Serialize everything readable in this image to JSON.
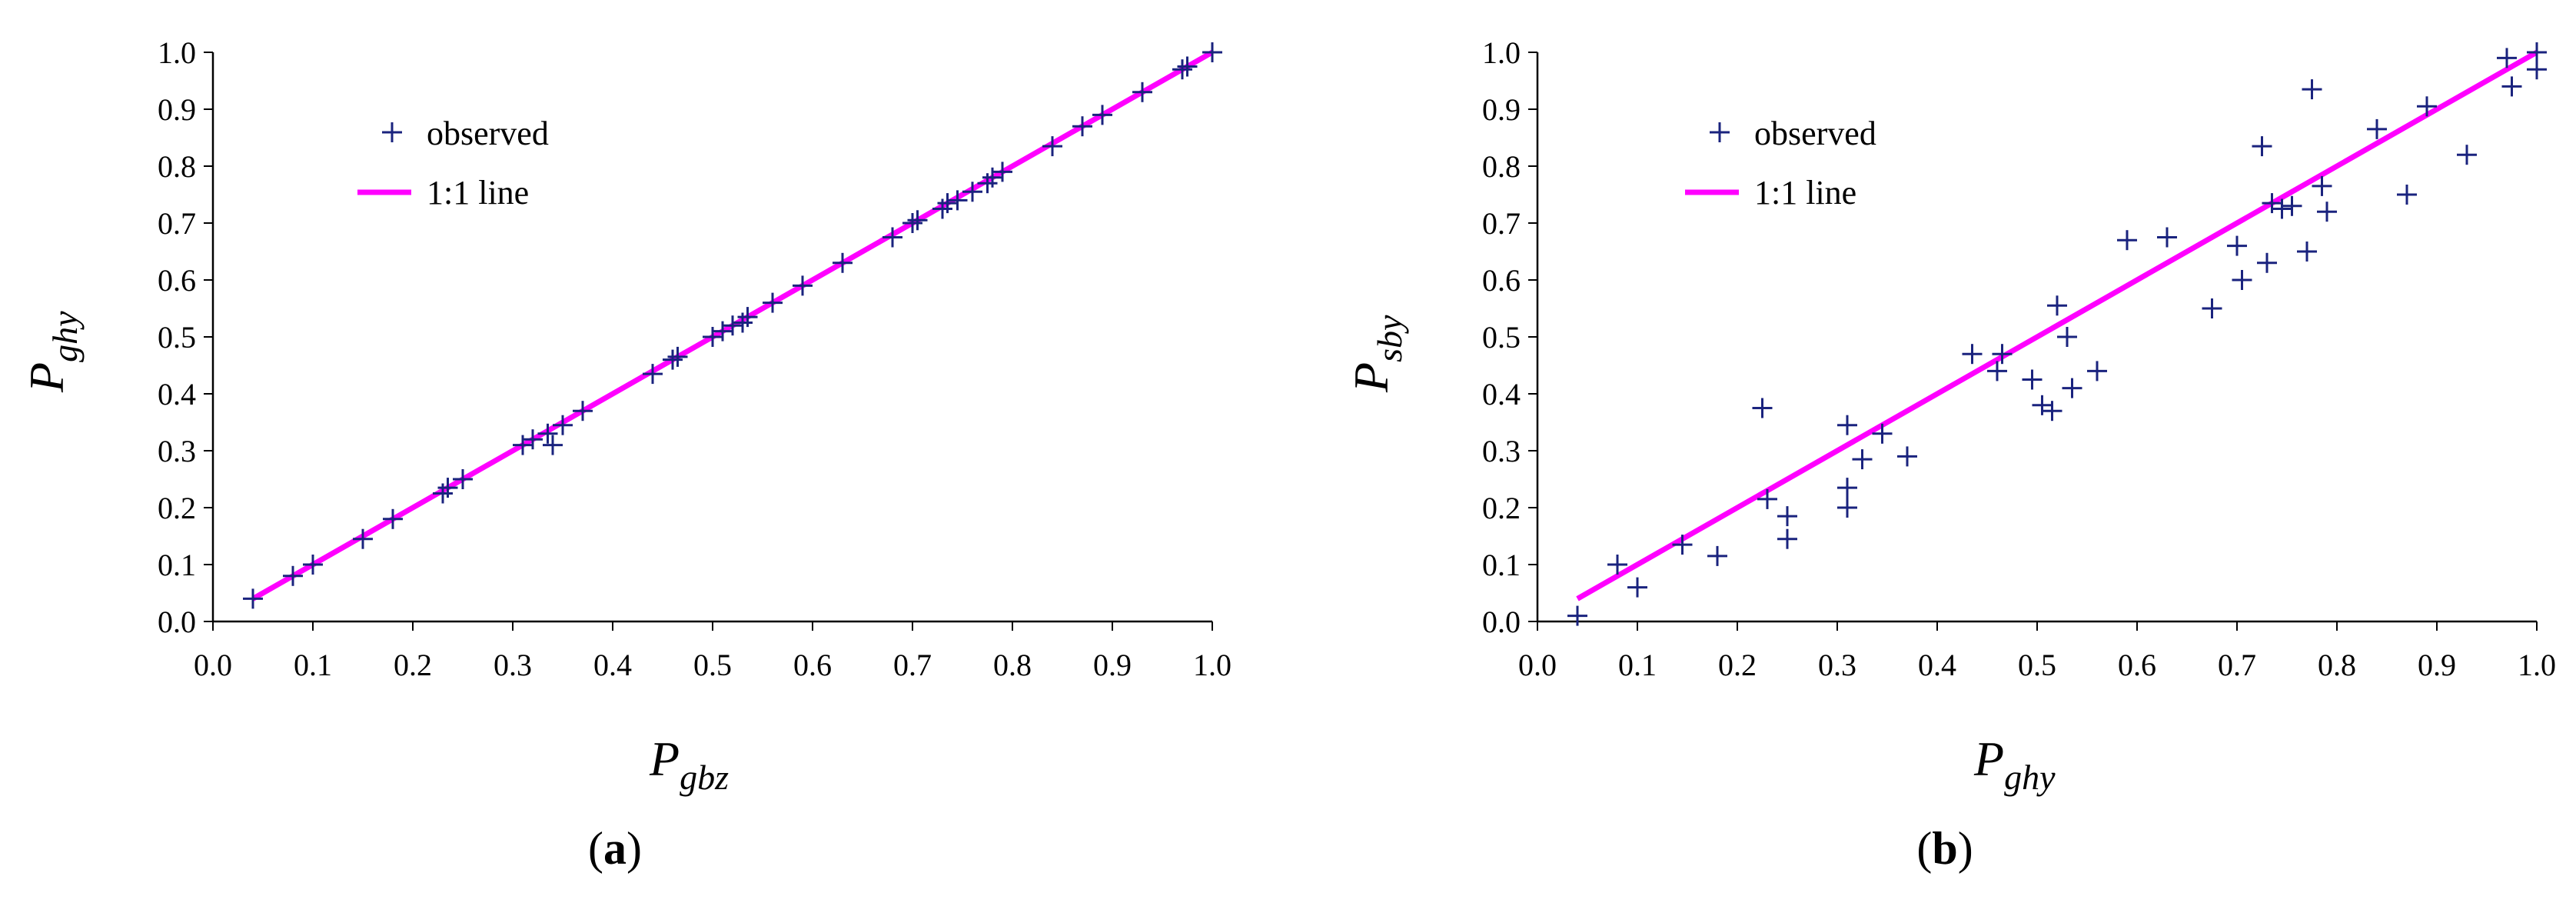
{
  "colors": {
    "observed": "#1a237e",
    "line": "#ff00ff",
    "axis": "#000000"
  },
  "panels": [
    {
      "label": "(a)",
      "label_bold": "a",
      "xlabel_main": "P",
      "xlabel_sub": "gbz",
      "ylabel_main": "P",
      "ylabel_sub": "ghy",
      "legend": {
        "observed": "observed",
        "line": "1:1 line"
      }
    },
    {
      "label": "(b)",
      "label_bold": "b",
      "xlabel_main": "P",
      "xlabel_sub": "ghy",
      "ylabel_main": "P",
      "ylabel_sub": "sby",
      "legend": {
        "observed": "observed",
        "line": "1:1 line"
      }
    }
  ],
  "chart_data": [
    {
      "type": "scatter",
      "xlabel": "Pgbz",
      "ylabel": "Pghy",
      "xlim": [
        0,
        1
      ],
      "ylim": [
        0,
        1
      ],
      "xticks": [
        "0.0",
        "0.1",
        "0.2",
        "0.3",
        "0.4",
        "0.5",
        "0.6",
        "0.7",
        "0.8",
        "0.9",
        "1.0"
      ],
      "yticks": [
        "0.0",
        "0.1",
        "0.2",
        "0.3",
        "0.4",
        "0.5",
        "0.6",
        "0.7",
        "0.8",
        "0.9",
        "1.0"
      ],
      "legend_position": "top-left",
      "series": [
        {
          "name": "observed",
          "marker": "+",
          "points": [
            [
              0.04,
              0.04
            ],
            [
              0.08,
              0.08
            ],
            [
              0.1,
              0.1
            ],
            [
              0.15,
              0.145
            ],
            [
              0.18,
              0.18
            ],
            [
              0.23,
              0.225
            ],
            [
              0.235,
              0.235
            ],
            [
              0.25,
              0.25
            ],
            [
              0.31,
              0.31
            ],
            [
              0.32,
              0.32
            ],
            [
              0.335,
              0.33
            ],
            [
              0.34,
              0.31
            ],
            [
              0.35,
              0.345
            ],
            [
              0.37,
              0.37
            ],
            [
              0.44,
              0.435
            ],
            [
              0.46,
              0.46
            ],
            [
              0.465,
              0.465
            ],
            [
              0.5,
              0.5
            ],
            [
              0.51,
              0.51
            ],
            [
              0.52,
              0.52
            ],
            [
              0.53,
              0.525
            ],
            [
              0.535,
              0.535
            ],
            [
              0.56,
              0.56
            ],
            [
              0.59,
              0.59
            ],
            [
              0.63,
              0.63
            ],
            [
              0.68,
              0.675
            ],
            [
              0.7,
              0.7
            ],
            [
              0.705,
              0.705
            ],
            [
              0.73,
              0.725
            ],
            [
              0.735,
              0.735
            ],
            [
              0.745,
              0.74
            ],
            [
              0.76,
              0.755
            ],
            [
              0.775,
              0.77
            ],
            [
              0.78,
              0.78
            ],
            [
              0.79,
              0.79
            ],
            [
              0.84,
              0.835
            ],
            [
              0.87,
              0.87
            ],
            [
              0.89,
              0.89
            ],
            [
              0.93,
              0.93
            ],
            [
              0.97,
              0.97
            ],
            [
              0.975,
              0.975
            ],
            [
              1.0,
              1.0
            ]
          ]
        },
        {
          "name": "1:1 line",
          "type": "line",
          "points": [
            [
              0.04,
              0.04
            ],
            [
              1.0,
              1.0
            ]
          ]
        }
      ]
    },
    {
      "type": "scatter",
      "xlabel": "Pghy",
      "ylabel": "Psby",
      "xlim": [
        0,
        1
      ],
      "ylim": [
        0,
        1
      ],
      "xticks": [
        "0.0",
        "0.1",
        "0.2",
        "0.3",
        "0.4",
        "0.5",
        "0.6",
        "0.7",
        "0.8",
        "0.9",
        "1.0"
      ],
      "yticks": [
        "0.0",
        "0.1",
        "0.2",
        "0.3",
        "0.4",
        "0.5",
        "0.6",
        "0.7",
        "0.8",
        "0.9",
        "1.0"
      ],
      "legend_position": "top-left",
      "series": [
        {
          "name": "observed",
          "marker": "+",
          "points": [
            [
              0.04,
              0.01
            ],
            [
              0.08,
              0.1
            ],
            [
              0.1,
              0.06
            ],
            [
              0.145,
              0.135
            ],
            [
              0.18,
              0.115
            ],
            [
              0.225,
              0.375
            ],
            [
              0.23,
              0.215
            ],
            [
              0.25,
              0.145
            ],
            [
              0.25,
              0.185
            ],
            [
              0.31,
              0.345
            ],
            [
              0.31,
              0.235
            ],
            [
              0.31,
              0.2
            ],
            [
              0.325,
              0.285
            ],
            [
              0.345,
              0.33
            ],
            [
              0.37,
              0.29
            ],
            [
              0.435,
              0.47
            ],
            [
              0.46,
              0.44
            ],
            [
              0.465,
              0.47
            ],
            [
              0.495,
              0.425
            ],
            [
              0.505,
              0.38
            ],
            [
              0.515,
              0.37
            ],
            [
              0.52,
              0.555
            ],
            [
              0.53,
              0.5
            ],
            [
              0.535,
              0.41
            ],
            [
              0.56,
              0.44
            ],
            [
              0.59,
              0.67
            ],
            [
              0.63,
              0.675
            ],
            [
              0.675,
              0.55
            ],
            [
              0.7,
              0.66
            ],
            [
              0.705,
              0.6
            ],
            [
              0.725,
              0.835
            ],
            [
              0.73,
              0.63
            ],
            [
              0.735,
              0.735
            ],
            [
              0.745,
              0.725
            ],
            [
              0.755,
              0.73
            ],
            [
              0.77,
              0.65
            ],
            [
              0.775,
              0.935
            ],
            [
              0.785,
              0.765
            ],
            [
              0.79,
              0.72
            ],
            [
              0.84,
              0.865
            ],
            [
              0.87,
              0.75
            ],
            [
              0.89,
              0.905
            ],
            [
              0.93,
              0.82
            ],
            [
              0.97,
              0.99
            ],
            [
              0.975,
              0.94
            ],
            [
              1.0,
              1.0
            ],
            [
              1.0,
              0.97
            ]
          ]
        },
        {
          "name": "1:1 line",
          "type": "line",
          "points": [
            [
              0.04,
              0.04
            ],
            [
              1.0,
              1.0
            ]
          ]
        }
      ]
    }
  ]
}
